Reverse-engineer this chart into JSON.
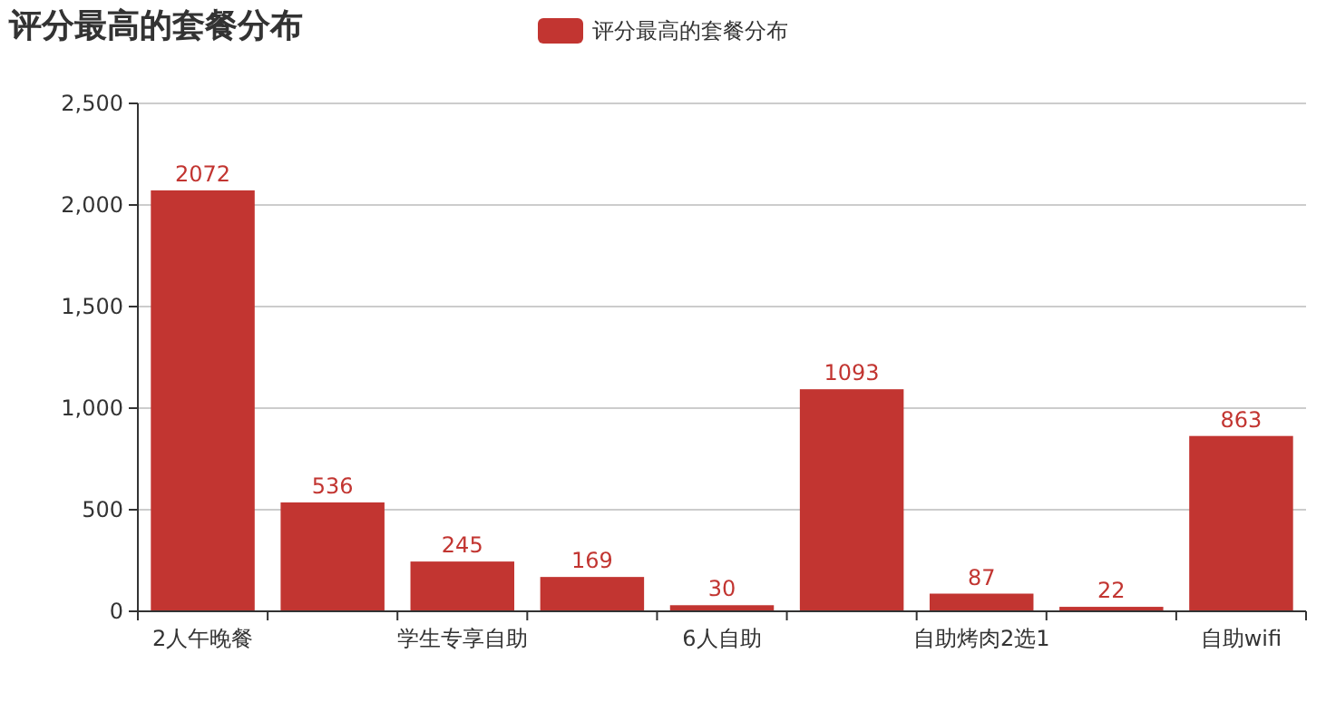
{
  "chart_data": {
    "type": "bar",
    "title": "评分最高的套餐分布",
    "categories": [
      "2人午晚餐",
      null,
      "学生专享自助",
      null,
      "6人自助",
      null,
      "自助烤肉2选1",
      null,
      "自助wifi"
    ],
    "series": [
      {
        "name": "评分最高的套餐分布",
        "color": "#c23531",
        "values": [
          2072,
          536,
          245,
          169,
          30,
          1093,
          87,
          22,
          863
        ]
      }
    ],
    "ylim": [
      0,
      2500
    ],
    "yticks": [
      {
        "value": 0,
        "label": "0"
      },
      {
        "value": 500,
        "label": "500"
      },
      {
        "value": 1000,
        "label": "1,000"
      },
      {
        "value": 1500,
        "label": "1,500"
      },
      {
        "value": 2000,
        "label": "2,000"
      },
      {
        "value": 2500,
        "label": "2,500"
      }
    ],
    "grid": "y",
    "legend": "top",
    "data_labels": true
  }
}
